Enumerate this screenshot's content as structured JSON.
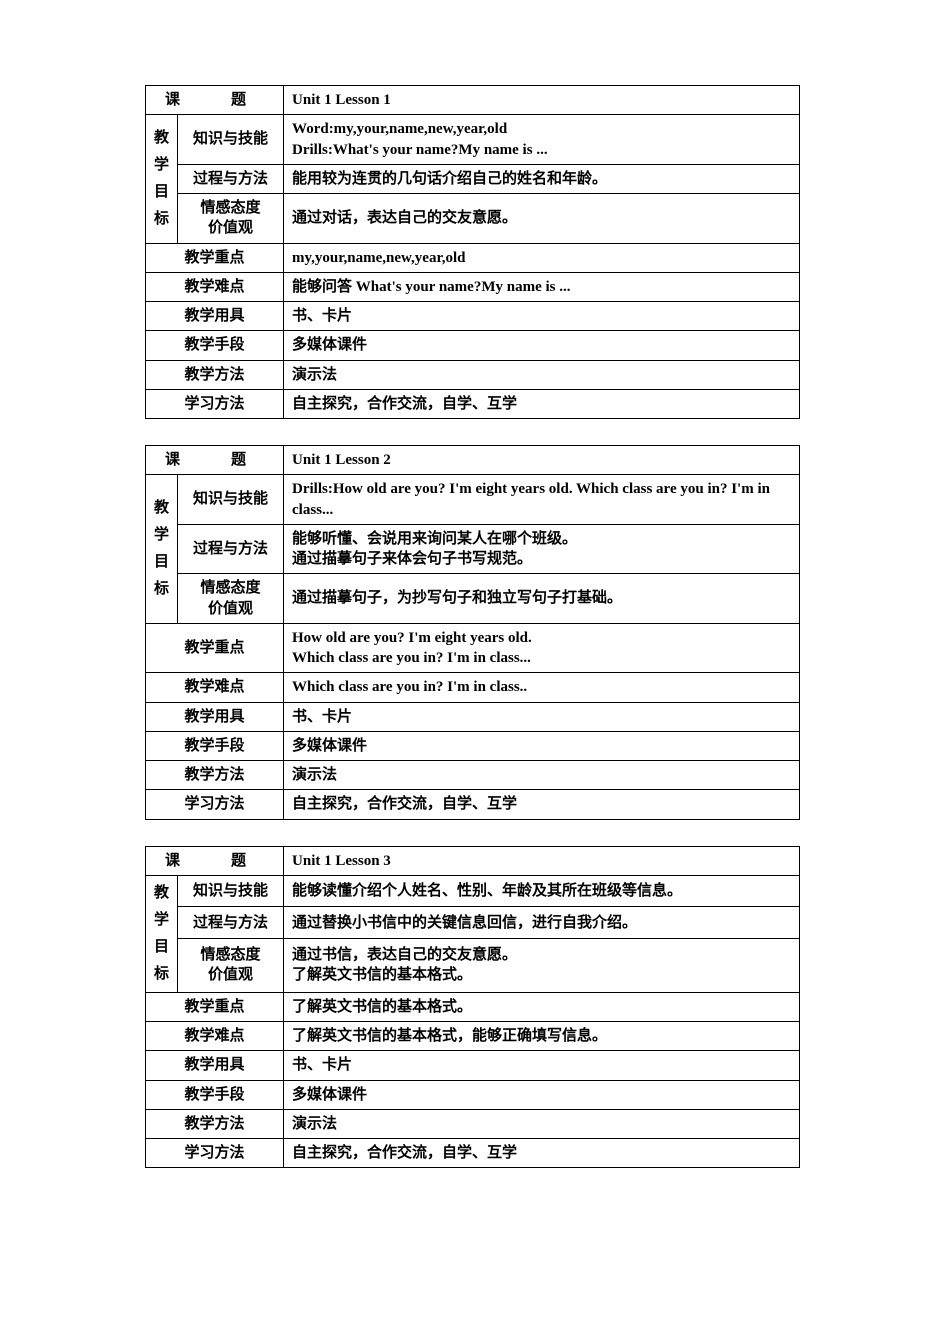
{
  "labels": {
    "course_title": "课　题",
    "vert_teaching_goal": "教学目标",
    "knowledge_skill": "知识与技能",
    "process_method": "过程与方法",
    "attitude_value_1": "情感态度",
    "attitude_value_2": "价值观",
    "key_point": "教学重点",
    "difficult_point": "教学难点",
    "tools": "教学用具",
    "means": "教学手段",
    "method": "教学方法",
    "learn_method": "学习方法"
  },
  "lesson1": {
    "title": "Unit 1 Lesson 1",
    "knowledge": "Word:my,your,name,new,year,old\nDrills:What's your name?My name is ...",
    "process": "能用较为连贯的几句话介绍自己的姓名和年龄。",
    "attitude": "通过对话，表达自己的交友意愿。",
    "key": "my,your,name,new,year,old",
    "difficult": "能够问答 What's your name?My name is ...",
    "tools": "书、卡片",
    "means": "多媒体课件",
    "method": "演示法",
    "learn": "自主探究，合作交流，自学、互学"
  },
  "lesson2": {
    "title": "Unit 1 Lesson 2",
    "knowledge": "Drills:How old are you? I'm eight years old. Which class are you in? I'm in class...",
    "process": "能够听懂、会说用来询问某人在哪个班级。\n通过描摹句子来体会句子书写规范。",
    "attitude": "通过描摹句子，为抄写句子和独立写句子打基础。",
    "key": "How old are you? I'm eight years old.\nWhich class are you in? I'm in class...",
    "difficult": "Which class are you in? I'm in class..",
    "tools": "书、卡片",
    "means": "多媒体课件",
    "method": "演示法",
    "learn": "自主探究，合作交流，自学、互学"
  },
  "lesson3": {
    "title": "Unit 1 Lesson 3",
    "knowledge": "能够读懂介绍个人姓名、性别、年龄及其所在班级等信息。",
    "process": "通过替换小书信中的关键信息回信，进行自我介绍。",
    "attitude": "通过书信，表达自己的交友意愿。\n了解英文书信的基本格式。",
    "key": "了解英文书信的基本格式。",
    "difficult": "了解英文书信的基本格式，能够正确填写信息。",
    "tools": "书、卡片",
    "means": "多媒体课件",
    "method": "演示法",
    "learn": "自主探究，合作交流，自学、互学"
  }
}
